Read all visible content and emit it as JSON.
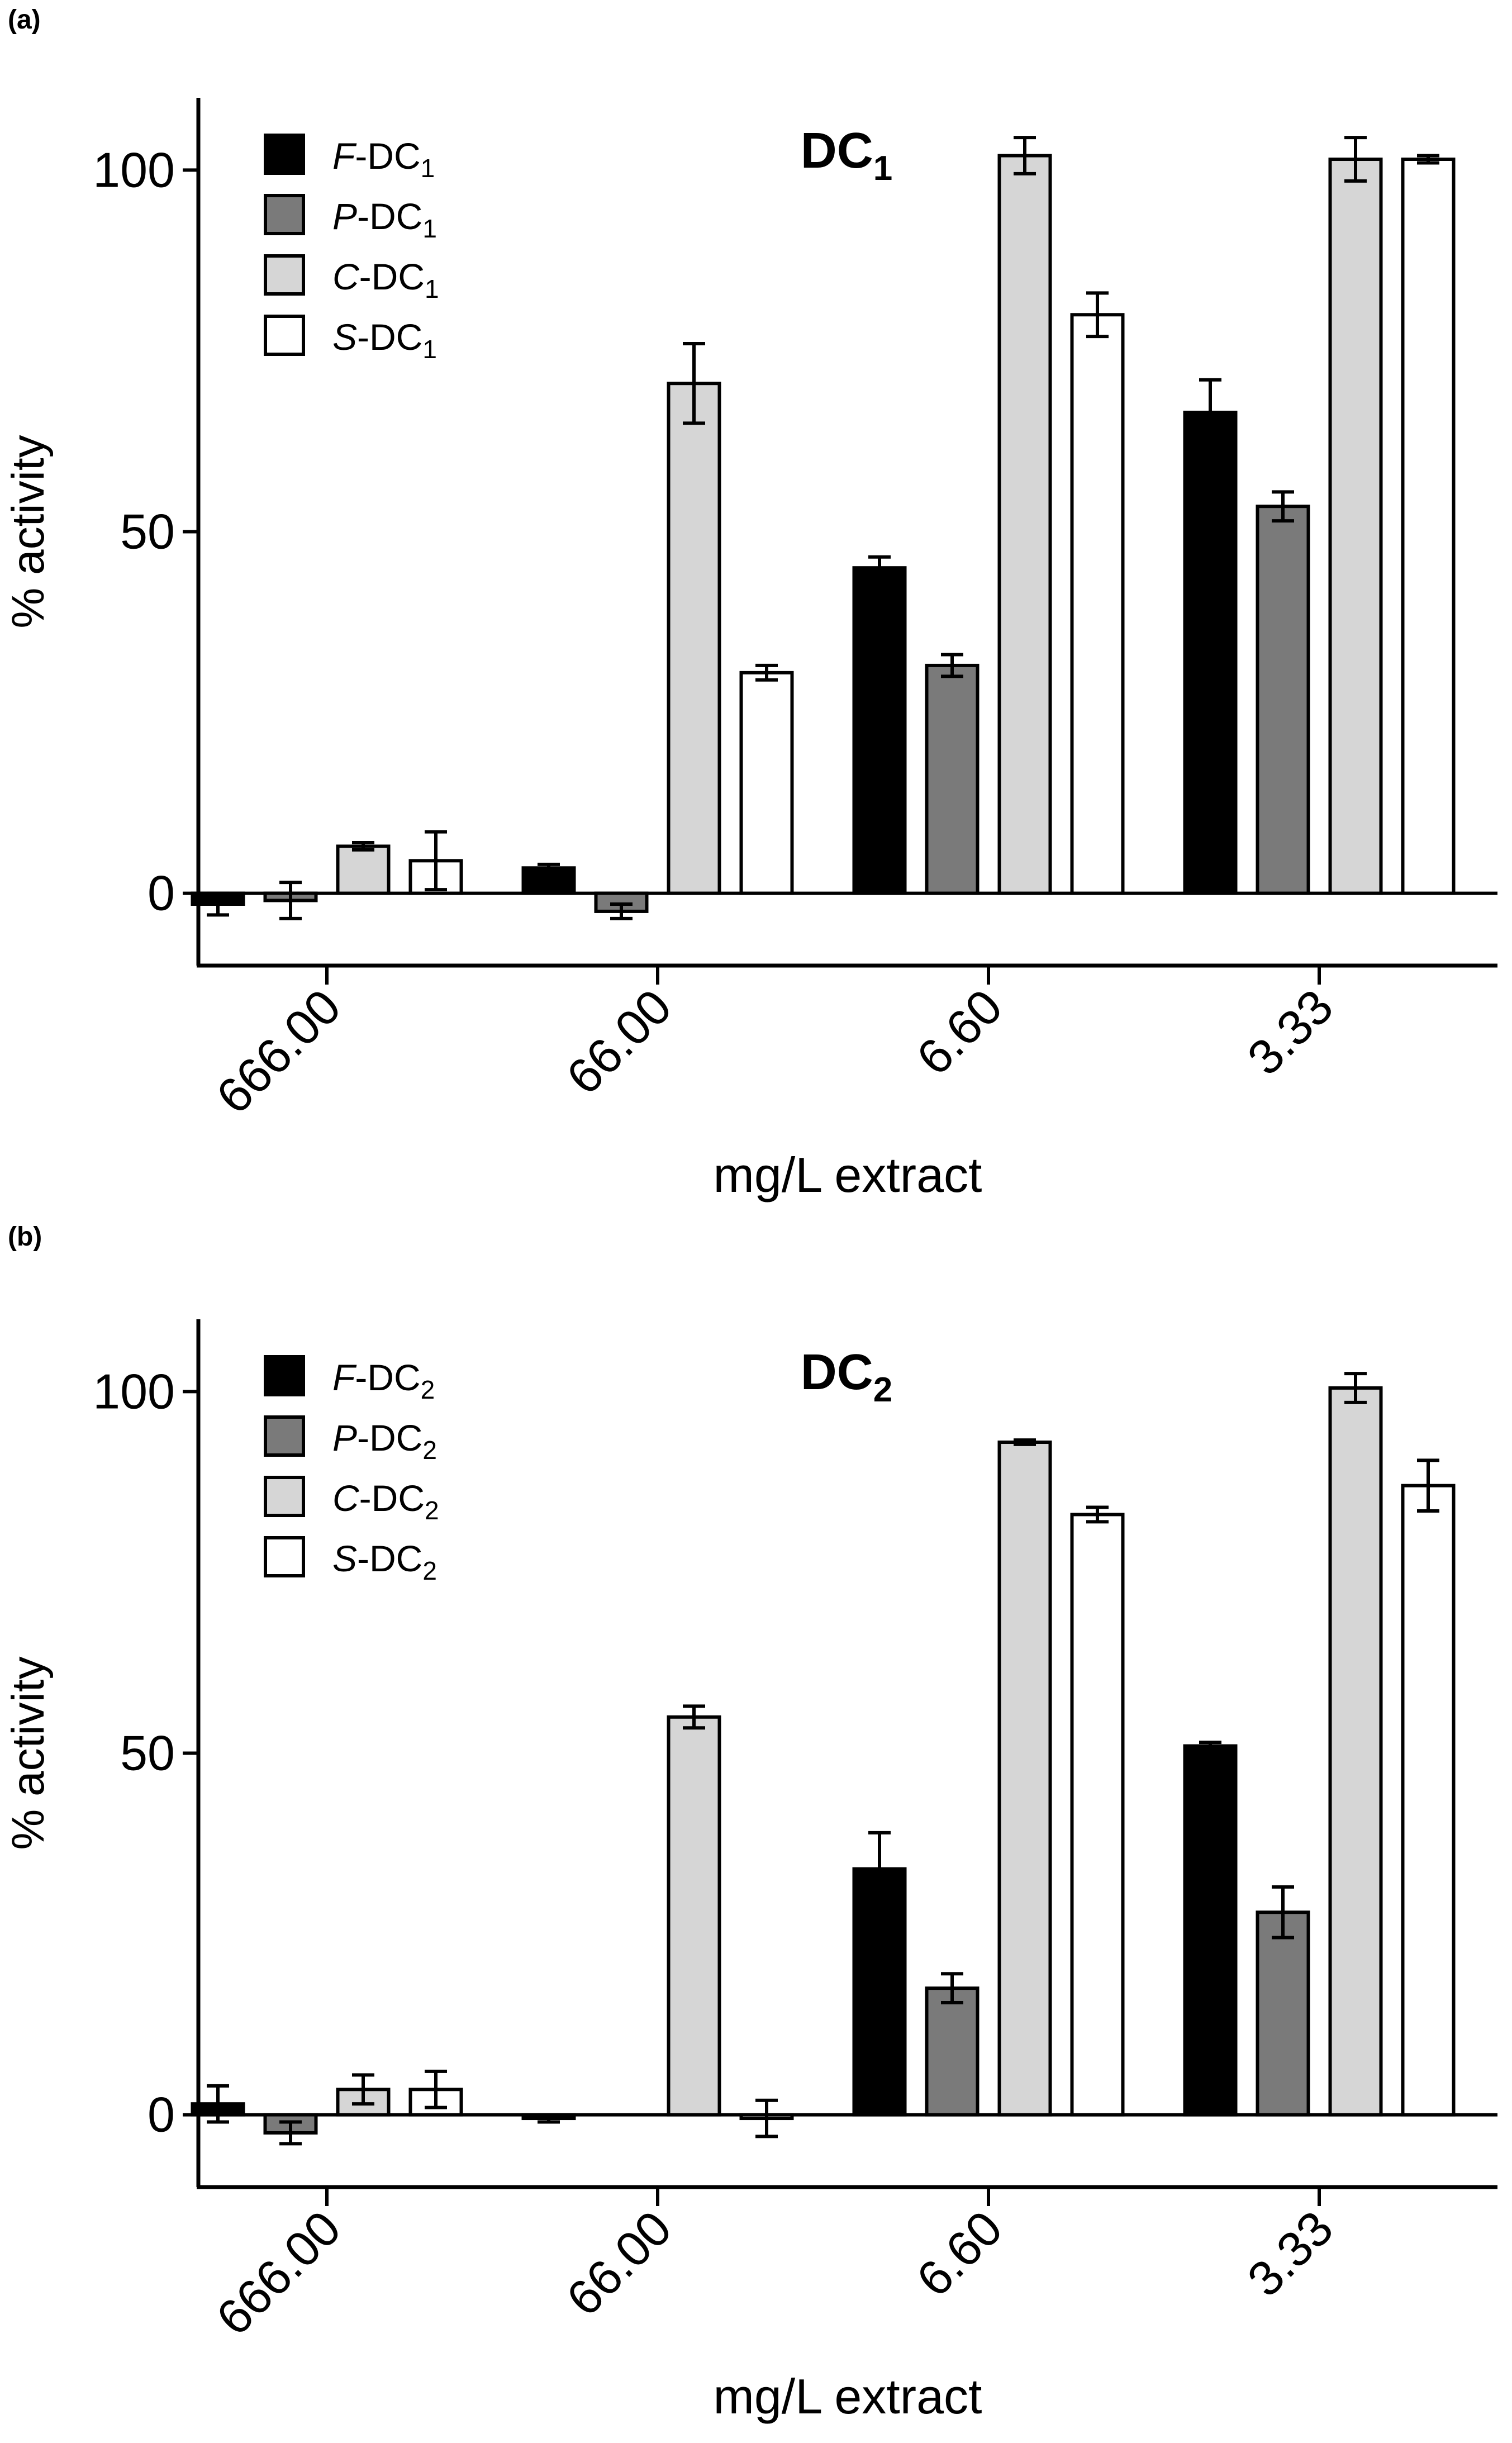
{
  "chart_data": [
    {
      "panel_label": "(a)",
      "type": "bar",
      "title": "DC",
      "title_sub": "1",
      "xlabel": "mg/L extract",
      "ylabel": "% activity",
      "ylim": [
        -10,
        110
      ],
      "yticks": [
        "0",
        "50",
        "100"
      ],
      "grid": false,
      "legend_position": "top-left",
      "categories": [
        "666.00",
        "66.00",
        "6.60",
        "3.33"
      ],
      "series": [
        {
          "name": "F-DC1",
          "prefix": "F",
          "base": "-DC",
          "sub": "1",
          "color": "#000000",
          "values": [
            -1.5,
            3.5,
            45,
            66.5
          ],
          "errors": [
            1.5,
            0.5,
            1.5,
            4.5
          ]
        },
        {
          "name": "P-DC1",
          "prefix": "P",
          "base": "-DC",
          "sub": "1",
          "color": "#7a7a7a",
          "values": [
            -1,
            -2.5,
            31.5,
            53.5
          ],
          "errors": [
            2.5,
            1,
            1.5,
            2
          ]
        },
        {
          "name": "C-DC1",
          "prefix": "C",
          "base": "-DC",
          "sub": "1",
          "color": "#d6d6d6",
          "values": [
            6.5,
            70.5,
            102,
            101.5
          ],
          "errors": [
            0.5,
            5.5,
            2.5,
            3
          ]
        },
        {
          "name": "S-DC1",
          "prefix": "S",
          "base": "-DC",
          "sub": "1",
          "color": "#ffffff",
          "values": [
            4.5,
            30.5,
            80,
            101.5
          ],
          "errors": [
            4,
            1,
            3,
            0.5
          ]
        }
      ]
    },
    {
      "panel_label": "(b)",
      "type": "bar",
      "title": "DC",
      "title_sub": "2",
      "xlabel": "mg/L extract",
      "ylabel": "% activity",
      "ylim": [
        -10,
        110
      ],
      "yticks": [
        "0",
        "50",
        "100"
      ],
      "grid": false,
      "legend_position": "top-left",
      "categories": [
        "666.00",
        "66.00",
        "6.60",
        "3.33"
      ],
      "series": [
        {
          "name": "F-DC2",
          "prefix": "F",
          "base": "-DC",
          "sub": "2",
          "color": "#000000",
          "values": [
            1.5,
            -0.5,
            34,
            51
          ],
          "errors": [
            2.5,
            0.5,
            5,
            0.5
          ]
        },
        {
          "name": "P-DC2",
          "prefix": "P",
          "base": "-DC",
          "sub": "2",
          "color": "#7a7a7a",
          "values": [
            -2.5,
            null,
            17.5,
            28
          ],
          "errors": [
            1.5,
            0,
            2,
            3.5
          ]
        },
        {
          "name": "C-DC2",
          "prefix": "C",
          "base": "-DC",
          "sub": "2",
          "color": "#d6d6d6",
          "values": [
            3.5,
            55,
            93,
            100.5
          ],
          "errors": [
            2,
            1.5,
            0.3,
            2
          ]
        },
        {
          "name": "S-DC2",
          "prefix": "S",
          "base": "-DC",
          "sub": "2",
          "color": "#ffffff",
          "values": [
            3.5,
            -0.5,
            83,
            87
          ],
          "errors": [
            2.5,
            2.5,
            1,
            3.5
          ]
        }
      ]
    }
  ]
}
